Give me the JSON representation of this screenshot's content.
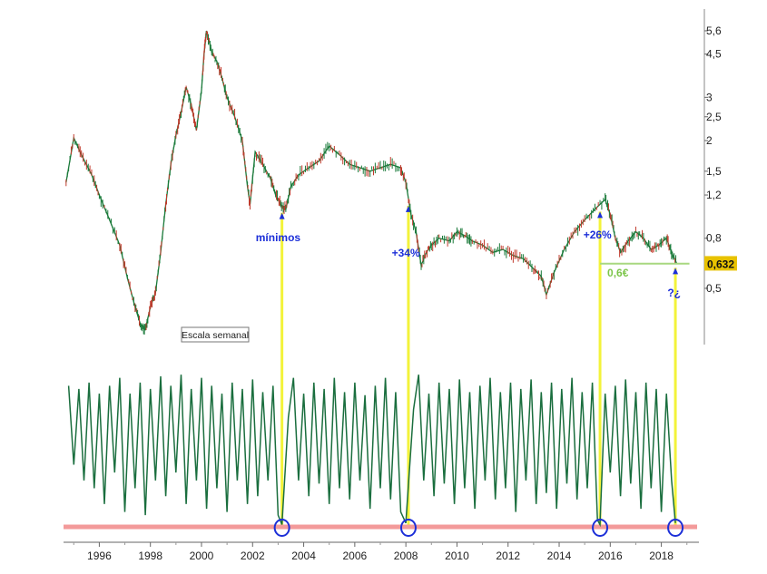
{
  "chart_data": [
    {
      "type": "line",
      "panel": "price",
      "y_scale": "log",
      "ylim": [
        0.3,
        6.2
      ],
      "xlim": [
        1994.6,
        2019.4
      ],
      "y_ticks": [
        {
          "v": 5.6,
          "label": "5,6"
        },
        {
          "v": 4.5,
          "label": "4,5"
        },
        {
          "v": 3.0,
          "label": "3"
        },
        {
          "v": 2.5,
          "label": "2,5"
        },
        {
          "v": 2.0,
          "label": "2"
        },
        {
          "v": 1.5,
          "label": "1,5"
        },
        {
          "v": 1.2,
          "label": "1,2"
        },
        {
          "v": 0.8,
          "label": "0,8"
        },
        {
          "v": 0.5,
          "label": "0,5"
        }
      ],
      "series": [
        {
          "color": "#1a7a3a",
          "points": [
            [
              1994.7,
              1.35
            ],
            [
              1995.0,
              2.05
            ],
            [
              1995.3,
              1.75
            ],
            [
              1995.7,
              1.45
            ],
            [
              1996.0,
              1.2
            ],
            [
              1996.4,
              0.95
            ],
            [
              1996.8,
              0.75
            ],
            [
              1997.1,
              0.55
            ],
            [
              1997.4,
              0.42
            ],
            [
              1997.6,
              0.36
            ],
            [
              1997.8,
              0.34
            ],
            [
              1998.0,
              0.42
            ],
            [
              1998.2,
              0.48
            ],
            [
              1998.4,
              0.7
            ],
            [
              1998.6,
              1.1
            ],
            [
              1998.8,
              1.6
            ],
            [
              1999.0,
              2.1
            ],
            [
              1999.2,
              2.6
            ],
            [
              1999.4,
              3.3
            ],
            [
              1999.6,
              2.8
            ],
            [
              1999.8,
              2.2
            ],
            [
              2000.0,
              3.2
            ],
            [
              2000.1,
              4.5
            ],
            [
              2000.2,
              5.6
            ],
            [
              2000.4,
              4.6
            ],
            [
              2000.6,
              4.2
            ],
            [
              2000.8,
              3.6
            ],
            [
              2001.0,
              3.0
            ],
            [
              2001.3,
              2.5
            ],
            [
              2001.6,
              2.0
            ],
            [
              2001.8,
              1.3
            ],
            [
              2001.9,
              1.1
            ],
            [
              2002.1,
              1.8
            ],
            [
              2002.4,
              1.6
            ],
            [
              2002.7,
              1.4
            ],
            [
              2002.9,
              1.2
            ],
            [
              2003.1,
              1.1
            ],
            [
              2003.3,
              1.05
            ],
            [
              2003.5,
              1.3
            ],
            [
              2003.8,
              1.45
            ],
            [
              2004.2,
              1.55
            ],
            [
              2004.6,
              1.65
            ],
            [
              2005.0,
              1.9
            ],
            [
              2005.4,
              1.75
            ],
            [
              2005.8,
              1.6
            ],
            [
              2006.2,
              1.55
            ],
            [
              2006.6,
              1.5
            ],
            [
              2007.0,
              1.55
            ],
            [
              2007.4,
              1.6
            ],
            [
              2007.8,
              1.55
            ],
            [
              2008.0,
              1.35
            ],
            [
              2008.2,
              1.0
            ],
            [
              2008.4,
              0.85
            ],
            [
              2008.6,
              0.62
            ],
            [
              2008.8,
              0.7
            ],
            [
              2009.0,
              0.75
            ],
            [
              2009.3,
              0.8
            ],
            [
              2009.7,
              0.78
            ],
            [
              2010.0,
              0.85
            ],
            [
              2010.3,
              0.82
            ],
            [
              2010.6,
              0.78
            ],
            [
              2011.0,
              0.75
            ],
            [
              2011.4,
              0.7
            ],
            [
              2011.8,
              0.72
            ],
            [
              2012.2,
              0.68
            ],
            [
              2012.6,
              0.66
            ],
            [
              2013.0,
              0.6
            ],
            [
              2013.3,
              0.56
            ],
            [
              2013.5,
              0.47
            ],
            [
              2013.8,
              0.58
            ],
            [
              2014.2,
              0.72
            ],
            [
              2014.6,
              0.85
            ],
            [
              2015.0,
              0.95
            ],
            [
              2015.4,
              1.05
            ],
            [
              2015.8,
              1.15
            ],
            [
              2016.0,
              1.0
            ],
            [
              2016.2,
              0.8
            ],
            [
              2016.4,
              0.7
            ],
            [
              2016.7,
              0.78
            ],
            [
              2017.0,
              0.85
            ],
            [
              2017.3,
              0.8
            ],
            [
              2017.6,
              0.72
            ],
            [
              2017.9,
              0.75
            ],
            [
              2018.2,
              0.8
            ],
            [
              2018.4,
              0.7
            ],
            [
              2018.6,
              0.632
            ]
          ]
        }
      ],
      "last_value_label": "0,632",
      "support": {
        "value": 0.63,
        "from": 2015.6,
        "to": 2019.1,
        "label": "0,6€",
        "color": "#a8d880"
      },
      "annotations": [
        {
          "text": "mínimos",
          "x": 2003.0
        },
        {
          "text": "+34%",
          "x": 2008.0
        },
        {
          "text": "+26%",
          "x": 2015.5
        },
        {
          "text": "?¿",
          "x": 2018.5
        }
      ],
      "scale_label": "Escala semanal"
    },
    {
      "type": "line",
      "panel": "oscillator",
      "ylim": [
        0,
        100
      ],
      "xlim": [
        1994.6,
        2019.4
      ],
      "threshold": 2,
      "series": [
        {
          "color": "#1a6e3e",
          "points": [
            [
              1994.8,
              90
            ],
            [
              1995.0,
              40
            ],
            [
              1995.2,
              88
            ],
            [
              1995.4,
              30
            ],
            [
              1995.6,
              92
            ],
            [
              1995.8,
              25
            ],
            [
              1996.0,
              85
            ],
            [
              1996.2,
              15
            ],
            [
              1996.4,
              90
            ],
            [
              1996.6,
              35
            ],
            [
              1996.8,
              95
            ],
            [
              1997.0,
              10
            ],
            [
              1997.2,
              85
            ],
            [
              1997.4,
              25
            ],
            [
              1997.6,
              92
            ],
            [
              1997.8,
              8
            ],
            [
              1998.0,
              88
            ],
            [
              1998.2,
              30
            ],
            [
              1998.4,
              96
            ],
            [
              1998.6,
              20
            ],
            [
              1998.8,
              90
            ],
            [
              1999.0,
              35
            ],
            [
              1999.2,
              97
            ],
            [
              1999.4,
              15
            ],
            [
              1999.6,
              88
            ],
            [
              1999.8,
              30
            ],
            [
              2000.0,
              95
            ],
            [
              2000.2,
              12
            ],
            [
              2000.4,
              90
            ],
            [
              2000.6,
              25
            ],
            [
              2000.8,
              85
            ],
            [
              2001.0,
              10
            ],
            [
              2001.2,
              92
            ],
            [
              2001.4,
              30
            ],
            [
              2001.6,
              88
            ],
            [
              2001.8,
              15
            ],
            [
              2002.0,
              94
            ],
            [
              2002.2,
              20
            ],
            [
              2002.4,
              86
            ],
            [
              2002.6,
              30
            ],
            [
              2002.8,
              90
            ],
            [
              2003.0,
              8
            ],
            [
              2003.15,
              2
            ],
            [
              2003.4,
              70
            ],
            [
              2003.6,
              95
            ],
            [
              2003.8,
              30
            ],
            [
              2004.0,
              85
            ],
            [
              2004.2,
              20
            ],
            [
              2004.4,
              92
            ],
            [
              2004.6,
              28
            ],
            [
              2004.8,
              88
            ],
            [
              2005.0,
              15
            ],
            [
              2005.2,
              95
            ],
            [
              2005.4,
              25
            ],
            [
              2005.6,
              86
            ],
            [
              2005.8,
              18
            ],
            [
              2006.0,
              92
            ],
            [
              2006.2,
              30
            ],
            [
              2006.4,
              84
            ],
            [
              2006.6,
              12
            ],
            [
              2006.8,
              90
            ],
            [
              2007.0,
              25
            ],
            [
              2007.2,
              95
            ],
            [
              2007.4,
              18
            ],
            [
              2007.6,
              86
            ],
            [
              2007.8,
              10
            ],
            [
              2008.0,
              3
            ],
            [
              2008.3,
              75
            ],
            [
              2008.5,
              97
            ],
            [
              2008.7,
              30
            ],
            [
              2008.9,
              85
            ],
            [
              2009.1,
              20
            ],
            [
              2009.3,
              92
            ],
            [
              2009.5,
              28
            ],
            [
              2009.7,
              88
            ],
            [
              2009.9,
              15
            ],
            [
              2010.1,
              94
            ],
            [
              2010.3,
              25
            ],
            [
              2010.5,
              86
            ],
            [
              2010.7,
              12
            ],
            [
              2010.9,
              90
            ],
            [
              2011.1,
              30
            ],
            [
              2011.3,
              95
            ],
            [
              2011.5,
              18
            ],
            [
              2011.7,
              86
            ],
            [
              2011.9,
              25
            ],
            [
              2012.1,
              92
            ],
            [
              2012.3,
              10
            ],
            [
              2012.5,
              88
            ],
            [
              2012.7,
              30
            ],
            [
              2012.9,
              94
            ],
            [
              2013.1,
              15
            ],
            [
              2013.3,
              86
            ],
            [
              2013.5,
              22
            ],
            [
              2013.7,
              92
            ],
            [
              2013.9,
              12
            ],
            [
              2014.1,
              88
            ],
            [
              2014.3,
              28
            ],
            [
              2014.5,
              95
            ],
            [
              2014.7,
              18
            ],
            [
              2014.9,
              86
            ],
            [
              2015.1,
              25
            ],
            [
              2015.3,
              92
            ],
            [
              2015.5,
              5
            ],
            [
              2015.6,
              2
            ],
            [
              2015.8,
              85
            ],
            [
              2016.0,
              35
            ],
            [
              2016.2,
              90
            ],
            [
              2016.4,
              20
            ],
            [
              2016.6,
              94
            ],
            [
              2016.8,
              28
            ],
            [
              2017.0,
              86
            ],
            [
              2017.2,
              12
            ],
            [
              2017.4,
              92
            ],
            [
              2017.6,
              25
            ],
            [
              2017.8,
              88
            ],
            [
              2018.0,
              10
            ],
            [
              2018.2,
              85
            ],
            [
              2018.4,
              30
            ],
            [
              2018.55,
              3
            ]
          ]
        }
      ]
    }
  ],
  "x_axis": {
    "ticks": [
      {
        "v": 1996,
        "label": "1996"
      },
      {
        "v": 1998,
        "label": "1998"
      },
      {
        "v": 2000,
        "label": "2000"
      },
      {
        "v": 2002,
        "label": "2002"
      },
      {
        "v": 2004,
        "label": "2004"
      },
      {
        "v": 2006,
        "label": "2006"
      },
      {
        "v": 2008,
        "label": "2008"
      },
      {
        "v": 2010,
        "label": "2010"
      },
      {
        "v": 2012,
        "label": "2012"
      },
      {
        "v": 2014,
        "label": "2014"
      },
      {
        "v": 2016,
        "label": "2016"
      },
      {
        "v": 2018,
        "label": "2018"
      }
    ]
  },
  "markers": [
    {
      "x": 2003.15
    },
    {
      "x": 2008.1
    },
    {
      "x": 2015.6
    },
    {
      "x": 2018.55
    }
  ],
  "colors": {
    "price": "#1a7a3a",
    "down_candles": "#c0392b",
    "oscillator": "#1a6e3e",
    "yellow": "#f3f33a",
    "marker": "#1c2fd8",
    "annotation": "#1c2fd8",
    "threshold": "#f39a9a",
    "support": "#a8d880",
    "last_value_bg": "#e8c200"
  }
}
